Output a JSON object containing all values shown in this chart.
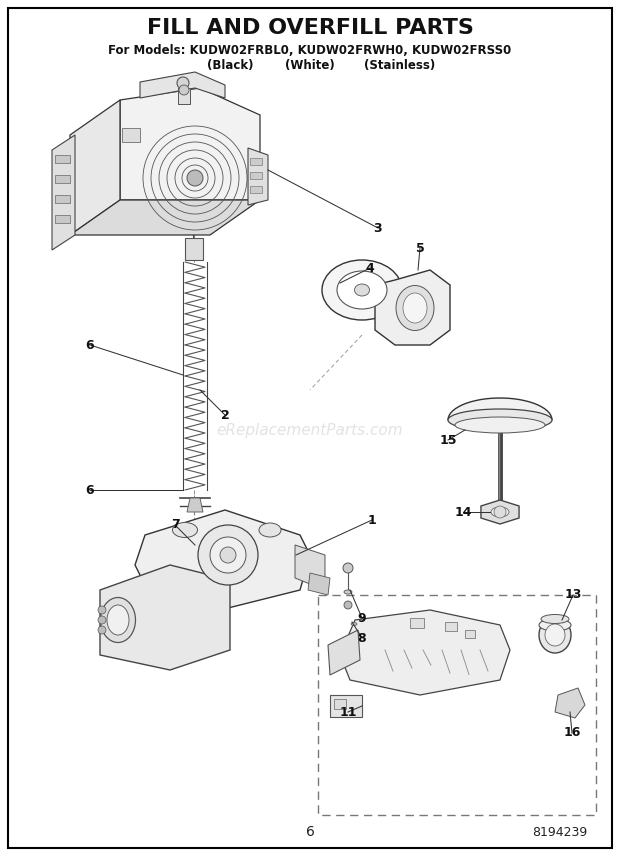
{
  "title_line1": "FILL AND OVERFILL PARTS",
  "title_line2": "For Models: KUDW02FRBL0, KUDW02FRWH0, KUDW02FRSS0",
  "title_line3_col1": "(Black)",
  "title_line3_col2": "(White)",
  "title_line3_col3": "(Stainless)",
  "page_number": "6",
  "doc_number": "8194239",
  "watermark": "eReplacementParts.com",
  "bg_color": "#ffffff",
  "border_color": "#000000",
  "text_color": "#1a1a1a",
  "figsize": [
    6.2,
    8.56
  ],
  "dpi": 100
}
